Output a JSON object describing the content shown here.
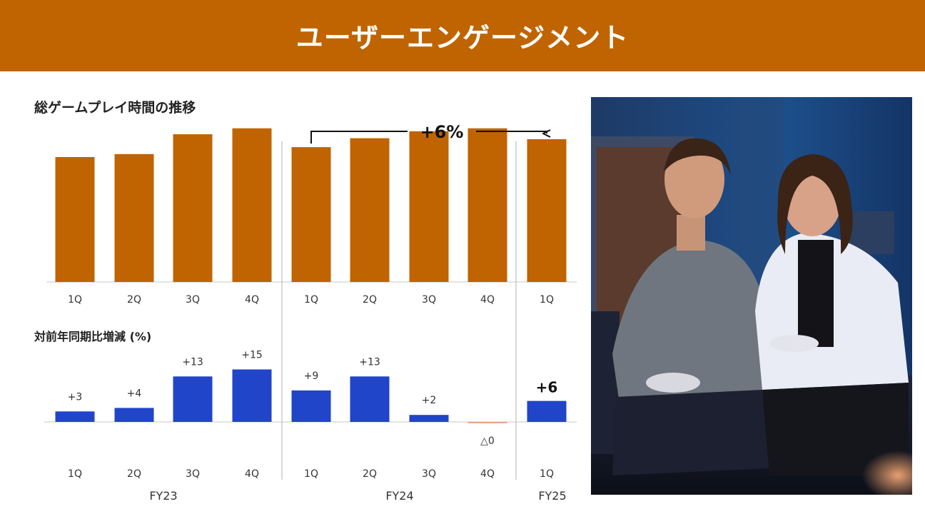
{
  "header": {
    "title": "ユーザーエンゲージメント"
  },
  "colors": {
    "header": "#bf6400",
    "bar_primary": "#bf6400",
    "bar_secondary": "#2145c9",
    "bar_negative": "#e7a98c"
  },
  "chart_data": [
    {
      "type": "bar",
      "title": "総ゲームプレイ時間の推移",
      "categories": [
        "1Q",
        "2Q",
        "3Q",
        "4Q",
        "1Q",
        "2Q",
        "3Q",
        "4Q",
        "1Q"
      ],
      "groups": [
        {
          "label": "FY23",
          "categories": [
            "1Q",
            "2Q",
            "3Q",
            "4Q"
          ]
        },
        {
          "label": "FY24",
          "categories": [
            "1Q",
            "2Q",
            "3Q",
            "4Q"
          ]
        },
        {
          "label": "FY25",
          "categories": [
            "1Q"
          ]
        }
      ],
      "values": [
        126,
        129,
        149,
        155,
        136,
        145,
        152,
        155,
        144
      ],
      "ylim": [
        0,
        180
      ],
      "annotation": {
        "text": "+6%",
        "from_index": 4,
        "to_index": 8
      }
    },
    {
      "type": "bar",
      "title": "対前年同期比増減 (%)",
      "categories": [
        "1Q",
        "2Q",
        "3Q",
        "4Q",
        "1Q",
        "2Q",
        "3Q",
        "4Q",
        "1Q"
      ],
      "values": [
        3,
        4,
        13,
        15,
        9,
        13,
        2,
        -0.2,
        6
      ],
      "data_labels": [
        "+3",
        "+4",
        "+13",
        "+15",
        "+9",
        "+13",
        "+2",
        "△0",
        "+6"
      ],
      "highlight_index": 8,
      "ylim": [
        -5,
        15
      ]
    }
  ],
  "photo": {
    "subject": "two-people-playing-video-game"
  }
}
